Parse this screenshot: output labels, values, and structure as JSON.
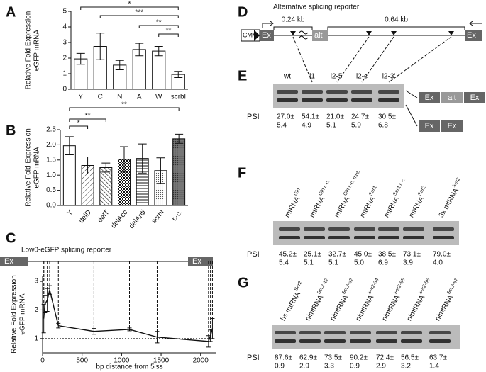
{
  "chart_data": [
    {
      "type": "bar",
      "panel": "A",
      "y_label": [
        "Relative Fold Expression",
        "eGFP mRNA"
      ],
      "categories": [
        "Y",
        "C",
        "N",
        "A",
        "W",
        "scrbl"
      ],
      "values": [
        1.95,
        2.75,
        1.55,
        2.55,
        2.45,
        0.95
      ],
      "errors": [
        0.35,
        0.85,
        0.3,
        0.4,
        0.3,
        0.2
      ],
      "color": "#ffffff",
      "ylim": [
        0,
        5
      ],
      "yticks": [
        0,
        1,
        2,
        3,
        4,
        5
      ],
      "brackets": [
        {
          "from": "Y",
          "to": "scrbl",
          "label": "*"
        },
        {
          "from": "C",
          "to": "scrbl",
          "label": "***"
        },
        {
          "from": "A",
          "to": "scrbl",
          "label": "**"
        },
        {
          "from": "W",
          "to": "scrbl",
          "label": "**"
        }
      ]
    },
    {
      "type": "bar",
      "panel": "B",
      "y_label": [
        "Relative Fold Expression",
        "eGFP mRNA"
      ],
      "categories": [
        "Y",
        "delD",
        "delT",
        "delAcc",
        "delAnti",
        "scrbl",
        "r.-c."
      ],
      "values": [
        1.97,
        1.32,
        1.25,
        1.52,
        1.55,
        1.15,
        2.2
      ],
      "errors": [
        0.3,
        0.28,
        0.15,
        0.42,
        0.48,
        0.42,
        0.15
      ],
      "color": "#ffffff",
      "ylim": [
        0,
        2.5
      ],
      "yticks": [
        {
          "value": 0,
          "label": "0.0"
        },
        0.5,
        {
          "value": 1,
          "label": "1.0"
        },
        1.5,
        {
          "value": 2,
          "label": "2.0"
        },
        2.5
      ],
      "brackets": [
        {
          "from": "Y",
          "to": "delD",
          "label": "*"
        },
        {
          "from": "Y",
          "to": "delT",
          "label": "**"
        },
        {
          "from": "Y",
          "to": "r.-c.",
          "label": "**"
        }
      ]
    },
    {
      "type": "line",
      "panel": "C",
      "title": "Low0-eGFP splicing reporter",
      "exons": [
        "Ex",
        "Ex"
      ],
      "x_label": "bp distance from 5'ss",
      "y_label": [
        "Relative Fold Expression",
        "eGFP mRNA"
      ],
      "x": [
        15,
        30,
        60,
        90,
        200,
        650,
        1100,
        1450,
        2100,
        2125,
        2150
      ],
      "y": [
        1.7,
        2.2,
        2.35,
        2.7,
        1.45,
        1.25,
        1.32,
        1.05,
        0.9,
        1.1,
        1.35
      ],
      "errors": [
        0.5,
        0.3,
        0.4,
        0.15,
        0.08,
        0.1,
        0.05,
        0.2,
        0.2,
        0.2,
        0.35
      ],
      "color": "#111111",
      "hline": 1,
      "xlim": [
        0,
        2200
      ],
      "xticks": [
        0,
        500,
        1000,
        1500,
        2000
      ],
      "ylim": [
        0.5,
        3.2
      ],
      "yticks": [
        1,
        2,
        3
      ]
    }
  ],
  "panel_d": {
    "letter": "D",
    "title": "Alternative splicing reporter",
    "promoter": "CMV",
    "exons": [
      "Ex",
      "alt",
      "Ex"
    ],
    "intron_sizes": [
      "0.24 kb",
      "0.64 kb"
    ]
  },
  "panel_e": {
    "letter": "E",
    "psi_label": "PSI",
    "lanes": [
      "wt",
      "i1",
      "i2-5'",
      "i2-c",
      "i2-3'"
    ],
    "psi": [
      [
        "27.0±",
        "5.4"
      ],
      [
        "54.1±",
        "4.9"
      ],
      [
        "21.0±",
        "5.1"
      ],
      [
        "24.7±",
        "5.9"
      ],
      [
        "30.5±",
        "6.8"
      ]
    ],
    "legend": [
      [
        "Ex",
        "alt",
        "Ex"
      ],
      [
        "Ex",
        "Ex"
      ]
    ]
  },
  "panel_f": {
    "letter": "F",
    "psi_label": "PSI",
    "lanes": [
      {
        "text": "mtRNA",
        "sup": "Gln"
      },
      {
        "text": "mtRNA",
        "sup": "Gln r.-c."
      },
      {
        "text": "mtRNA",
        "sup": "Gln r.-c. mut."
      },
      {
        "text": "mtRNA",
        "sup": "Ser1"
      },
      {
        "text": "mtRNA",
        "sup": "Ser1 r.-c."
      },
      {
        "text": "mtRNA",
        "sup": "Ser2"
      },
      {
        "text": "3x mtRNA",
        "sup": "Ser2"
      }
    ],
    "psi": [
      [
        "45.2±",
        "5.4"
      ],
      [
        "25.1±",
        "5.1"
      ],
      [
        "32.7±",
        "5.1"
      ],
      [
        "45.0±",
        "5.0"
      ],
      [
        "38.5±",
        "6.9"
      ],
      [
        "73.1±",
        "3.9"
      ],
      [
        "79.0±",
        "4.0"
      ]
    ]
  },
  "panel_g": {
    "letter": "G",
    "psi_label": "PSI",
    "lanes": [
      {
        "text": "hs mtRNA",
        "sup": "Ser2"
      },
      {
        "text": "nimtRNA",
        "sup": "Ser2-12"
      },
      {
        "text": "nimtRNA",
        "sup": "Ser2-32"
      },
      {
        "text": "nimtRNA",
        "sup": "Ser2-34"
      },
      {
        "text": "nimtRNA",
        "sup": "Ser2-55"
      },
      {
        "text": "nimtRNA",
        "sup": "Ser2-56"
      },
      {
        "text": "nimtRNA",
        "sup": "Ser2-67"
      }
    ],
    "psi": [
      [
        "87.6±",
        "0.9"
      ],
      [
        "62.9±",
        "2.9"
      ],
      [
        "73.5±",
        "3.3"
      ],
      [
        "90.2±",
        "0.9"
      ],
      [
        "72.4±",
        "2.9"
      ],
      [
        "56.5±",
        "3.2"
      ],
      [
        "63.7±",
        "1.4"
      ]
    ]
  }
}
